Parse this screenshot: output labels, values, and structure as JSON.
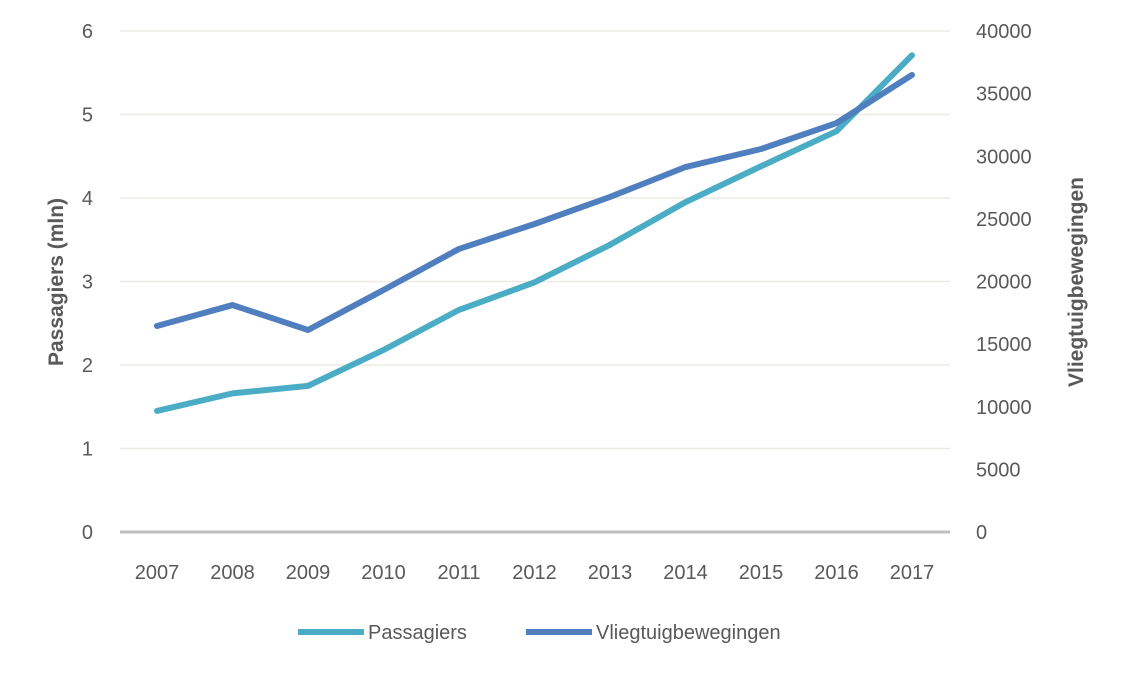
{
  "chart_data": {
    "type": "line",
    "title": "",
    "x": [
      "2007",
      "2008",
      "2009",
      "2010",
      "2011",
      "2012",
      "2013",
      "2014",
      "2015",
      "2016",
      "2017"
    ],
    "ylabel": "Passagiers (mln)",
    "y2label": "Vliegtuigbewegingen",
    "ylim": [
      0,
      6
    ],
    "yticks": [
      "0",
      "1",
      "2",
      "3",
      "4",
      "5",
      "6"
    ],
    "y2lim": [
      0,
      40000
    ],
    "y2ticks": [
      "0",
      "5000",
      "10000",
      "15000",
      "20000",
      "25000",
      "30000",
      "35000",
      "40000"
    ],
    "grid": true,
    "legend": "bottom",
    "series": [
      {
        "name": "Passagiers",
        "axis": "left",
        "color": "#4BACC6",
        "values": [
          1.45,
          1.66,
          1.75,
          2.18,
          2.66,
          2.99,
          3.44,
          3.95,
          4.38,
          4.8,
          5.71
        ]
      },
      {
        "name": "Vliegtuigbewegingen",
        "axis": "right",
        "color": "#4F7FBE",
        "values": [
          16450,
          18120,
          16130,
          19320,
          22600,
          24590,
          26750,
          29140,
          30580,
          32650,
          36490
        ]
      }
    ]
  }
}
